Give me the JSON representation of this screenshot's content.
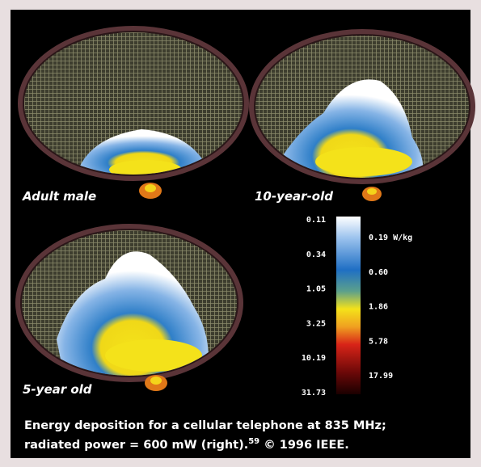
{
  "panels": [
    {
      "label": "Adult male"
    },
    {
      "label": "10-year-old"
    },
    {
      "label": "5-year old"
    }
  ],
  "colorbar": {
    "left_labels": [
      "0.11",
      "0.34",
      "1.05",
      "3.25",
      "10.19",
      "31.73"
    ],
    "right_labels": [
      "0.19 W/kg",
      "0.60",
      "1.86",
      "5.78",
      "17.99"
    ]
  },
  "caption": {
    "line1": "Energy deposition for a cellular telephone at 835 MHz;",
    "line2": "radiated power = 600 mW  (right).",
    "superscript": "59",
    "line2_end": " © 1996 IEEE."
  }
}
